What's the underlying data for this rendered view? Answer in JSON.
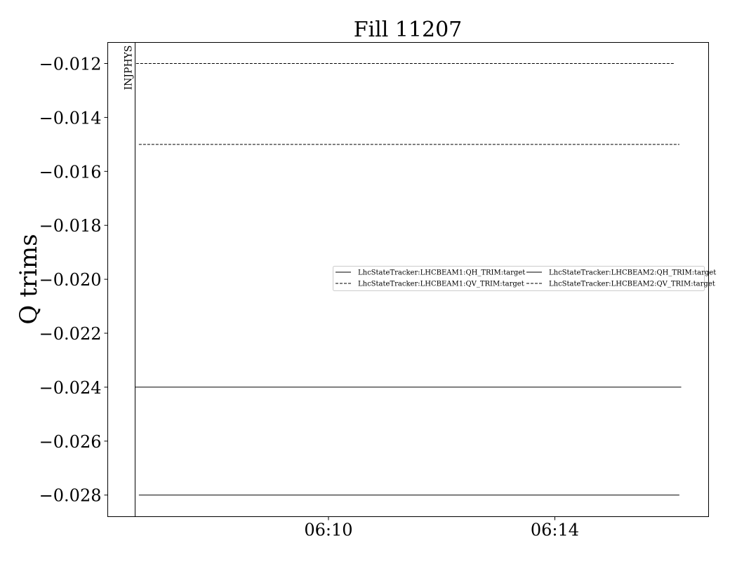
{
  "chart_data": {
    "type": "line",
    "title": "Fill 11207",
    "xlabel": "",
    "ylabel": "Q trims",
    "xlim": [
      "06:06:06",
      "06:16:43"
    ],
    "ylim": [
      -0.0288,
      -0.01122
    ],
    "xticks": [
      "06:10",
      "06:14"
    ],
    "yticks": [
      -0.012,
      -0.014,
      -0.016,
      -0.018,
      -0.02,
      -0.022,
      -0.024,
      -0.026,
      -0.028
    ],
    "ytick_labels": [
      "−0.012",
      "−0.014",
      "−0.016",
      "−0.018",
      "−0.020",
      "−0.022",
      "−0.024",
      "−0.026",
      "−0.028"
    ],
    "grid": false,
    "legend_placement": "center-right",
    "legend_columns": 2,
    "annotations": [
      {
        "text": "INJPHYS",
        "x": "06:06:35",
        "kind": "vertical-line"
      }
    ],
    "series": [
      {
        "name": "LhcStateTracker:LHCBEAM1:QH_TRIM:target",
        "style": "solid",
        "color": "#000000",
        "x": [
          "06:06:35",
          "06:16:14"
        ],
        "y": [
          -0.024,
          -0.024
        ]
      },
      {
        "name": "LhcStateTracker:LHCBEAM1:QV_TRIM:target",
        "style": "dashed",
        "color": "#000000",
        "x": [
          "06:06:36",
          "06:16:06"
        ],
        "y": [
          -0.012,
          -0.012
        ]
      },
      {
        "name": "LhcStateTracker:LHCBEAM2:QH_TRIM:target",
        "style": "solid",
        "color": "#000000",
        "x": [
          "06:06:39",
          "06:16:12"
        ],
        "y": [
          -0.028,
          -0.028
        ]
      },
      {
        "name": "LhcStateTracker:LHCBEAM2:QV_TRIM:target",
        "style": "dashed",
        "color": "#000000",
        "x": [
          "06:06:39",
          "06:16:12"
        ],
        "y": [
          -0.015,
          -0.015
        ]
      }
    ]
  }
}
